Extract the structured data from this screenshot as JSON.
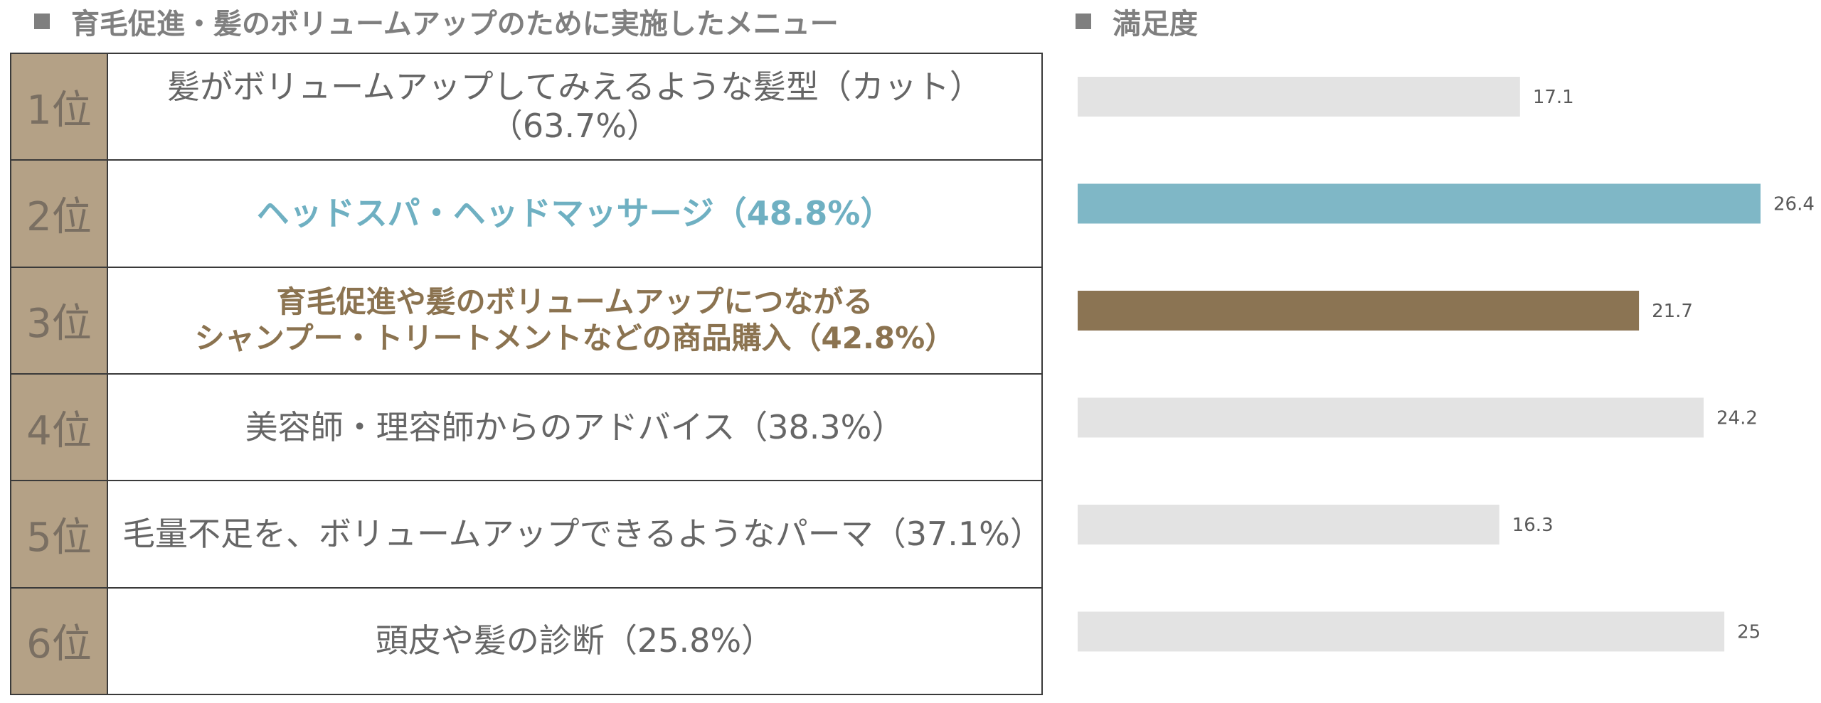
{
  "left_title": "育毛促進・髪のボリュームアップのために実施したメニュー",
  "right_title": "満足度",
  "rows": [
    {
      "rank": "1位",
      "menu": "髪がボリュームアップしてみえるような髪型（カット）（63.7%）",
      "style": "normal"
    },
    {
      "rank": "2位",
      "menu": "ヘッドスパ・ヘッドマッサージ（48.8%）",
      "style": "hl-blue"
    },
    {
      "rank": "3位",
      "menu": "育毛促進や髪のボリュームアップにつながる\nシャンプー・トリートメントなどの商品購入（42.8%）",
      "style": "hl-brown"
    },
    {
      "rank": "4位",
      "menu": "美容師・理容師からのアドバイス（38.3%）",
      "style": "normal"
    },
    {
      "rank": "5位",
      "menu": "毛量不足を、ボリュームアップできるようなパーマ（37.1%）",
      "style": "normal"
    },
    {
      "rank": "6位",
      "menu": "頭皮や髪の診断（25.8%）",
      "style": "normal"
    }
  ],
  "colors": {
    "rank_bg": "#b4a186",
    "bar_default": "#e3e3e3",
    "bar_blue": "#7fb7c6",
    "bar_brown": "#8b7453"
  },
  "chart_data": {
    "type": "bar",
    "orientation": "horizontal",
    "title": "満足度",
    "categories": [
      "1位",
      "2位",
      "3位",
      "4位",
      "5位",
      "6位"
    ],
    "values": [
      17.1,
      26.4,
      21.7,
      24.2,
      16.3,
      25
    ],
    "value_labels": [
      "17.1",
      "26.4",
      "21.7",
      "24.2",
      "16.3",
      "25"
    ],
    "bar_colors": [
      "#e3e3e3",
      "#7fb7c6",
      "#8b7453",
      "#e3e3e3",
      "#e3e3e3",
      "#e3e3e3"
    ],
    "xlim": [
      0,
      26.4
    ],
    "grid": false,
    "legend": "none"
  }
}
